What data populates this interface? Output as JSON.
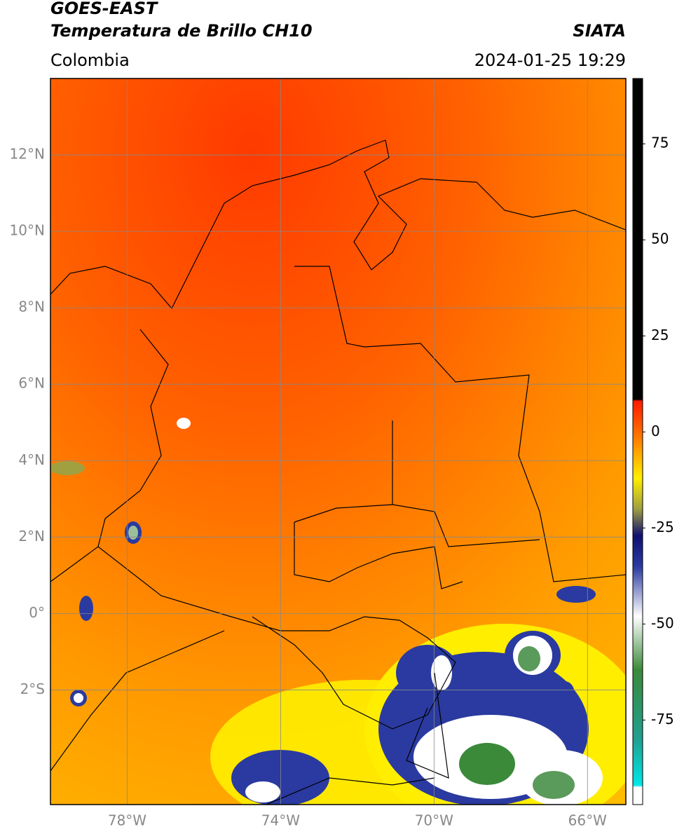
{
  "header": {
    "line1": "GOES-EAST",
    "line2": "Temperatura de Brillo CH10",
    "region": "Colombia",
    "source": "SIATA",
    "datetime": "2024-01-25 19:29"
  },
  "map": {
    "latlim": [
      -5,
      14
    ],
    "lonlim": [
      -80,
      -65
    ],
    "lat_ticks": [
      {
        "value": 12,
        "label": "12°N"
      },
      {
        "value": 10,
        "label": "10°N"
      },
      {
        "value": 8,
        "label": "8°N"
      },
      {
        "value": 6,
        "label": "6°N"
      },
      {
        "value": 4,
        "label": "4°N"
      },
      {
        "value": 2,
        "label": "2°N"
      },
      {
        "value": 0,
        "label": "0°"
      },
      {
        "value": -2,
        "label": "2°S"
      }
    ],
    "lon_ticks": [
      {
        "value": -78,
        "label": "78°W"
      },
      {
        "value": -74,
        "label": "74°W"
      },
      {
        "value": -70,
        "label": "70°W"
      },
      {
        "value": -66,
        "label": "66°W"
      }
    ],
    "grid": true
  },
  "colorbar": {
    "lim": [
      -97,
      92
    ],
    "ticks": [
      75,
      50,
      25,
      0,
      -25,
      -50,
      -75
    ],
    "stops": [
      {
        "value": 92,
        "color": "#000000"
      },
      {
        "value": 8.5,
        "color": "#000000"
      },
      {
        "value": 8,
        "color": "#ff1a00"
      },
      {
        "value": 0,
        "color": "#ff6a00"
      },
      {
        "value": -12,
        "color": "#ffee00"
      },
      {
        "value": -20,
        "color": "#a0a040"
      },
      {
        "value": -27,
        "color": "#101070"
      },
      {
        "value": -35,
        "color": "#2a3aa0"
      },
      {
        "value": -48,
        "color": "#ffffff"
      },
      {
        "value": -62,
        "color": "#3a8a3a"
      },
      {
        "value": -80,
        "color": "#20a090"
      },
      {
        "value": -92,
        "color": "#00e8e8"
      },
      {
        "value": -92.5,
        "color": "#ffffff"
      },
      {
        "value": -97,
        "color": "#ffffff"
      }
    ]
  }
}
